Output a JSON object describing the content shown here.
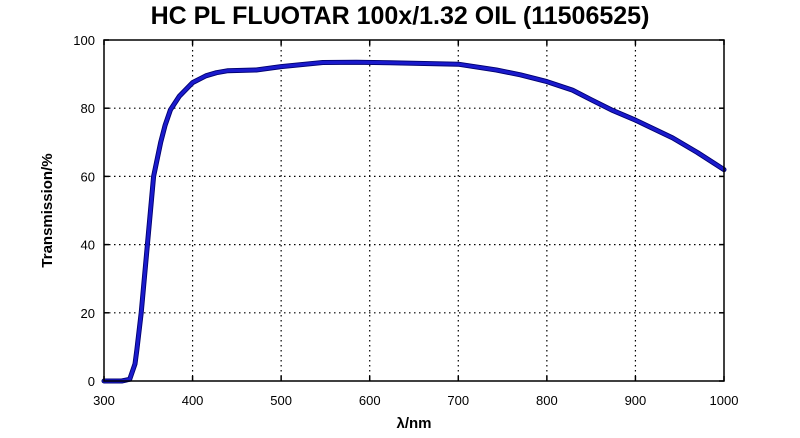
{
  "chart_data": {
    "type": "line",
    "title": "HC PL FLUOTAR 100x/1.32 OIL (11506525)",
    "xlabel": "λ/nm",
    "ylabel": "Transmission/%",
    "xlim": [
      300,
      1000
    ],
    "ylim": [
      0,
      100
    ],
    "xticks": [
      300,
      400,
      500,
      600,
      700,
      800,
      900,
      1000
    ],
    "yticks": [
      0,
      20,
      40,
      60,
      80,
      100
    ],
    "grid": "dotted",
    "legend": null,
    "series": [
      {
        "name": "Transmission",
        "color": "#1a1acc",
        "x": [
          300,
          320,
          329,
          335,
          337,
          342,
          349,
          356,
          364,
          369,
          375,
          385,
          400,
          415,
          427,
          440,
          472,
          500,
          547,
          585,
          623,
          700,
          743,
          770,
          800,
          829,
          850,
          873,
          900,
          942,
          970,
          1000
        ],
        "y": [
          0,
          0,
          0.5,
          5,
          9,
          20,
          40,
          60,
          70,
          75,
          79.5,
          83.5,
          87.5,
          89.5,
          90.4,
          91,
          91.2,
          92.2,
          93.4,
          93.5,
          93.3,
          92.9,
          91.2,
          89.8,
          87.8,
          85.3,
          82.5,
          79.5,
          76.5,
          71.3,
          67,
          62
        ]
      }
    ]
  }
}
